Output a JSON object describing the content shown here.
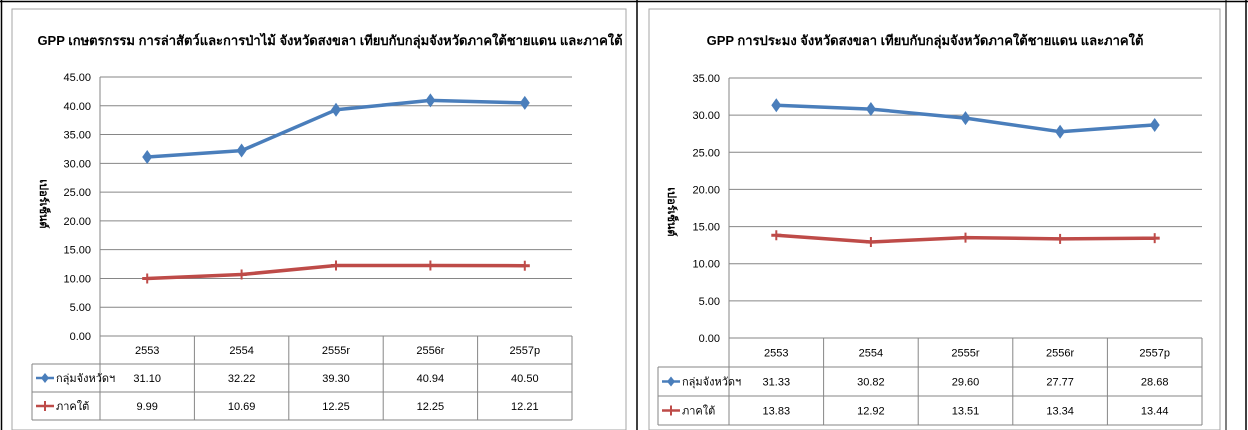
{
  "chart_data": [
    {
      "type": "line",
      "title": "GPP เกษตรกรรม การล่าสัตว์และการป่าไม้ จังหวัดสงขลา เทียบกับกลุ่มจังหวัดภาคใต้ชายแดน และภาคใต้",
      "ylabel": "เปอร์เซ็นต์",
      "xlabel": "",
      "ylim": [
        0,
        45
      ],
      "yticks": [
        "45.00",
        "40.00",
        "35.00",
        "30.00",
        "25.00",
        "20.00",
        "15.00",
        "10.00",
        "5.00",
        "0.00"
      ],
      "categories": [
        "2553",
        "2554",
        "2555r",
        "2556r",
        "2557p"
      ],
      "grid": true,
      "legend": "data-table",
      "series": [
        {
          "name": "กลุ่มจังหวัดฯ",
          "color": "#4a7ebb",
          "marker": "diamond",
          "values": [
            31.1,
            32.22,
            39.3,
            40.94,
            40.5
          ],
          "labels": [
            "31.10",
            "32.22",
            "39.30",
            "40.94",
            "40.50"
          ]
        },
        {
          "name": "ภาคใต้",
          "color": "#be4b48",
          "marker": "dash",
          "values": [
            9.99,
            10.69,
            12.25,
            12.25,
            12.21
          ],
          "labels": [
            "9.99",
            "10.69",
            "12.25",
            "12.25",
            "12.21"
          ]
        }
      ]
    },
    {
      "type": "line",
      "title": "GPP การประมง จังหวัดสงขลา เทียบกับกลุ่มจังหวัดภาคใต้ชายแดน และภาคใต้",
      "ylabel": "เปอร์เซ็นต์",
      "xlabel": "",
      "ylim": [
        0,
        35
      ],
      "yticks": [
        "35.00",
        "30.00",
        "25.00",
        "20.00",
        "15.00",
        "10.00",
        "5.00",
        "0.00"
      ],
      "categories": [
        "2553",
        "2554",
        "2555r",
        "2556r",
        "2557p"
      ],
      "grid": true,
      "legend": "data-table",
      "series": [
        {
          "name": "กลุ่มจังหวัดฯ",
          "color": "#4a7ebb",
          "marker": "diamond",
          "values": [
            31.33,
            30.82,
            29.6,
            27.77,
            28.68
          ],
          "labels": [
            "31.33",
            "30.82",
            "29.60",
            "27.77",
            "28.68"
          ]
        },
        {
          "name": "ภาคใต้",
          "color": "#be4b48",
          "marker": "dash",
          "values": [
            13.83,
            12.92,
            13.51,
            13.34,
            13.44
          ],
          "labels": [
            "13.83",
            "12.92",
            "13.51",
            "13.34",
            "13.44"
          ]
        }
      ]
    }
  ]
}
